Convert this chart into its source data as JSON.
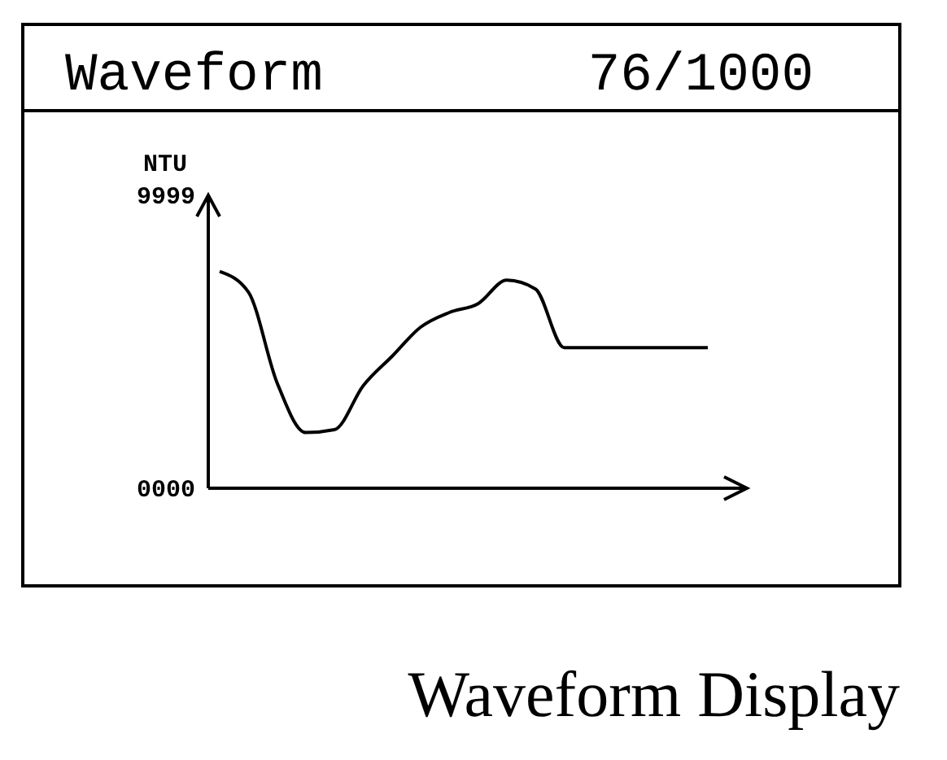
{
  "chart_data": {
    "type": "line",
    "title": "Waveform",
    "ylabel": "NTU",
    "annotations": [
      "76/1000",
      "Waveform Display"
    ],
    "categories": [
      null,
      null,
      null,
      null,
      null,
      null,
      null,
      null,
      null,
      null,
      null,
      null,
      null,
      null,
      null,
      null,
      null,
      null
    ],
    "series": [
      {
        "color": "#000000",
        "values": [
          7400,
          6700,
          3600,
          1900,
          2000,
          3500,
          4500,
          5500,
          6000,
          6300,
          7100,
          6800,
          4800,
          4800,
          4800,
          4800,
          4800,
          4800
        ]
      }
    ],
    "ylim": [
      0,
      9999
    ],
    "yticks": [
      {
        "value": 0,
        "label": "0000"
      },
      {
        "value": 9999,
        "label": "9999"
      }
    ],
    "tick_labels": "y",
    "grid": false,
    "marker": "none",
    "line_style": "solid"
  }
}
